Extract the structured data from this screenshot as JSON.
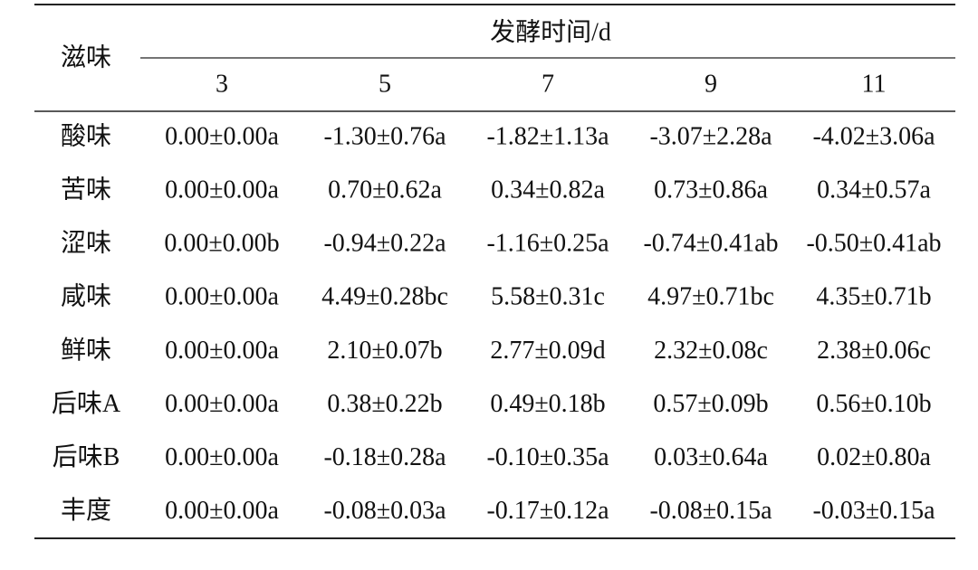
{
  "table": {
    "header": {
      "row_label": "滋味",
      "group": "发酵时间/d",
      "columns": [
        "3",
        "5",
        "7",
        "9",
        "11"
      ]
    },
    "rows": [
      {
        "label": "酸味",
        "cells": [
          "0.00±0.00a",
          "-1.30±0.76a",
          "-1.82±1.13a",
          "-3.07±2.28a",
          "-4.02±3.06a"
        ]
      },
      {
        "label": "苦味",
        "cells": [
          "0.00±0.00a",
          "0.70±0.62a",
          "0.34±0.82a",
          "0.73±0.86a",
          "0.34±0.57a"
        ]
      },
      {
        "label": "涩味",
        "cells": [
          "0.00±0.00b",
          "-0.94±0.22a",
          "-1.16±0.25a",
          "-0.74±0.41ab",
          "-0.50±0.41ab"
        ]
      },
      {
        "label": "咸味",
        "cells": [
          "0.00±0.00a",
          "4.49±0.28bc",
          "5.58±0.31c",
          "4.97±0.71bc",
          "4.35±0.71b"
        ]
      },
      {
        "label": "鲜味",
        "cells": [
          "0.00±0.00a",
          "2.10±0.07b",
          "2.77±0.09d",
          "2.32±0.08c",
          "2.38±0.06c"
        ]
      },
      {
        "label": "后味A",
        "cells": [
          "0.00±0.00a",
          "0.38±0.22b",
          "0.49±0.18b",
          "0.57±0.09b",
          "0.56±0.10b"
        ]
      },
      {
        "label": "后味B",
        "cells": [
          "0.00±0.00a",
          "-0.18±0.28a",
          "-0.10±0.35a",
          "0.03±0.64a",
          "0.02±0.80a"
        ]
      },
      {
        "label": "丰度",
        "cells": [
          "0.00±0.00a",
          "-0.08±0.03a",
          "-0.17±0.12a",
          "-0.08±0.15a",
          "-0.03±0.15a"
        ]
      }
    ]
  }
}
